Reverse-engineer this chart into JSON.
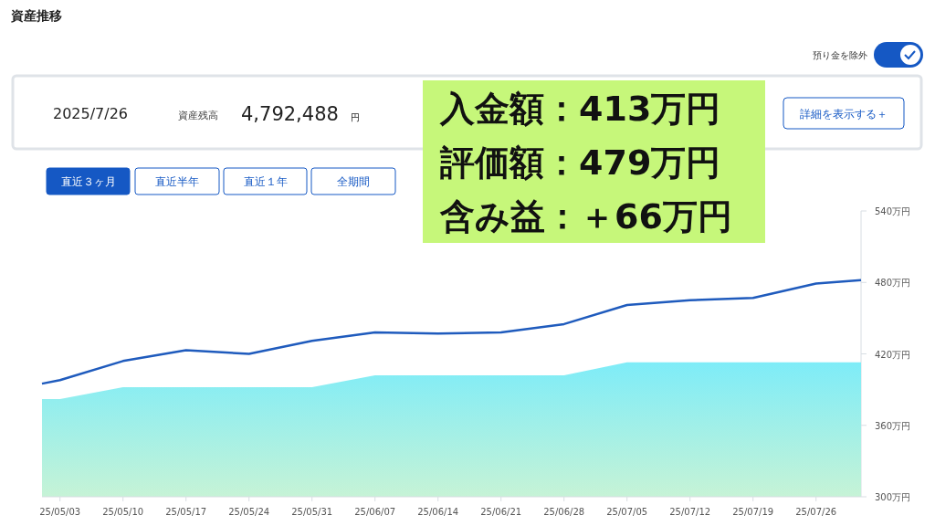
{
  "chart_data": {
    "type": "line",
    "title": "資産推移",
    "x": [
      "2025-05-01",
      "2025-05-03",
      "2025-05-10",
      "2025-05-17",
      "2025-05-24",
      "2025-05-31",
      "2025-06-07",
      "2025-06-14",
      "2025-06-21",
      "2025-06-28",
      "2025-07-05",
      "2025-07-12",
      "2025-07-19",
      "2025-07-26",
      "2025-07-31"
    ],
    "series": [
      {
        "type": "area",
        "color": "#7eecf8",
        "values": [
          382,
          382,
          392,
          392,
          392,
          392,
          402,
          402,
          402,
          402,
          413,
          413,
          413,
          413,
          413
        ]
      },
      {
        "type": "line",
        "color": "#1f5bbd",
        "values": [
          395,
          398,
          414,
          423,
          420,
          431,
          438,
          437,
          438,
          445,
          461,
          465,
          467,
          479,
          482
        ]
      }
    ],
    "xlim": [
      "2025-05-01",
      "2025-07-31"
    ],
    "xticks": [
      {
        "value": "2025-05-03",
        "label": "25/05/03"
      },
      {
        "value": "2025-05-10",
        "label": "25/05/10"
      },
      {
        "value": "2025-05-17",
        "label": "25/05/17"
      },
      {
        "value": "2025-05-24",
        "label": "25/05/24"
      },
      {
        "value": "2025-05-31",
        "label": "25/05/31"
      },
      {
        "value": "2025-06-07",
        "label": "25/06/07"
      },
      {
        "value": "2025-06-14",
        "label": "25/06/14"
      },
      {
        "value": "2025-06-21",
        "label": "25/06/21"
      },
      {
        "value": "2025-06-28",
        "label": "25/06/28"
      },
      {
        "value": "2025-07-05",
        "label": "25/07/05"
      },
      {
        "value": "2025-07-12",
        "label": "25/07/12"
      },
      {
        "value": "2025-07-19",
        "label": "25/07/19"
      },
      {
        "value": "2025-07-26",
        "label": "25/07/26"
      }
    ],
    "ylim": [
      300,
      540
    ],
    "yticks": [
      {
        "value": 300,
        "label": "300万円"
      },
      {
        "value": 360,
        "label": "360万円"
      },
      {
        "value": 420,
        "label": "420万円"
      },
      {
        "value": 480,
        "label": "480万円"
      },
      {
        "value": 540,
        "label": "540万円"
      }
    ],
    "grid": false,
    "marker": "none",
    "line_style": "solid",
    "annotations": [
      "預り金を除外",
      "2025/7/26",
      "資産残高",
      "4,792,488",
      "円",
      "詳細を表示する＋",
      "直近３ヶ月",
      "直近半年",
      "直近１年",
      "全期間",
      "入金額：413万円",
      "評価額：479万円",
      "含み益：＋66万円"
    ]
  }
}
